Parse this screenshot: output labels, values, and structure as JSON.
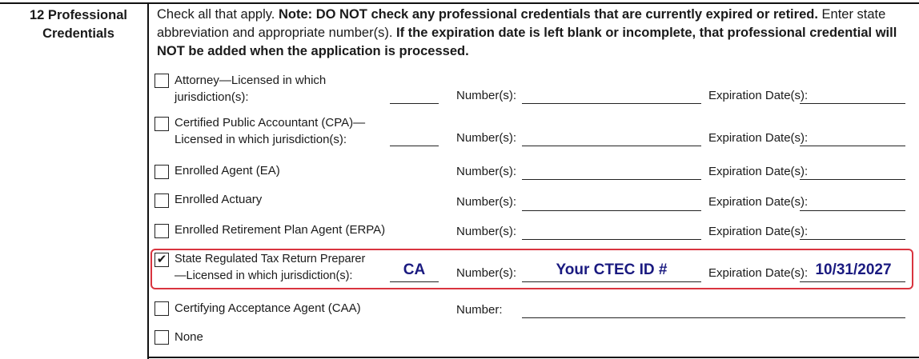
{
  "section": {
    "number": "12",
    "title_line1": "12 Professional",
    "title_line2": "Credentials"
  },
  "instructions": {
    "part1": "Check all that apply. ",
    "part2": "Note:  DO NOT check any professional credentials that are currently expired or retired.",
    "part3": " Enter state abbreviation and appropriate number(s). ",
    "part4": "If the expiration date is left blank or incomplete, that professional credential will NOT be added when the application is processed."
  },
  "labels": {
    "number": "Number(s):",
    "number_single": "Number:",
    "expiration": "Expiration Date(s):"
  },
  "credentials": [
    {
      "line1": "Attorney—Licensed in which",
      "line2": "jurisdiction(s):",
      "checked": false
    },
    {
      "line1": "Certified Public Accountant (CPA)—",
      "line2": "Licensed in which jurisdiction(s):",
      "checked": false
    },
    {
      "line1": "Enrolled Agent (EA)",
      "checked": false
    },
    {
      "line1": "Enrolled Actuary",
      "checked": false
    },
    {
      "line1": "Enrolled Retirement Plan Agent (ERPA)",
      "checked": false
    },
    {
      "line1": "State Regulated Tax Return Preparer",
      "line2": "—Licensed in which jurisdiction(s):",
      "checked": true,
      "check_mark": "✔",
      "jurisdiction": "CA",
      "number": "Your CTEC ID #",
      "expiration": "10/31/2027"
    },
    {
      "line1": "Certifying Acceptance Agent (CAA)",
      "checked": false
    },
    {
      "line1": "None",
      "checked": false
    }
  ],
  "colors": {
    "highlight": "#d9343f",
    "fill_text": "#1a1a80"
  }
}
